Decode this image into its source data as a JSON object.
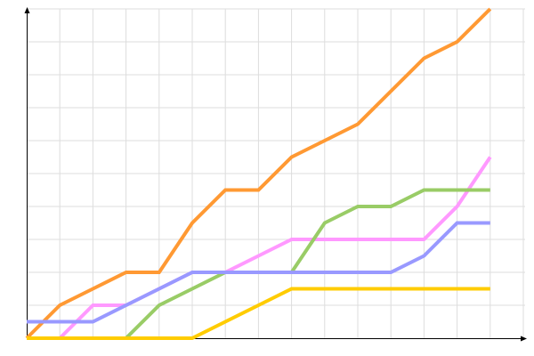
{
  "chart_data": {
    "type": "line",
    "title": "",
    "xlabel": "",
    "ylabel": "",
    "x": [
      0,
      1,
      2,
      3,
      4,
      5,
      6,
      7,
      8,
      9,
      10,
      11,
      12,
      13,
      14
    ],
    "xlim": [
      0,
      15
    ],
    "ylim": [
      0,
      10
    ],
    "grid": true,
    "legend": "none",
    "series": [
      {
        "color": "#ff9933",
        "values": [
          0,
          1,
          1.5,
          2,
          2,
          3.5,
          4.5,
          4.5,
          5.5,
          6,
          6.5,
          7.5,
          8.5,
          9,
          10
        ]
      },
      {
        "color": "#ff99ff",
        "values": [
          0,
          0,
          1,
          1,
          1.5,
          2,
          2,
          2.5,
          3,
          3,
          3,
          3,
          3,
          4,
          5.5
        ]
      },
      {
        "color": "#99cc66",
        "values": [
          0,
          0,
          0,
          0,
          1,
          1.5,
          2,
          2,
          2,
          3.5,
          4,
          4,
          4.5,
          4.5,
          4.5
        ]
      },
      {
        "color": "#9999ff",
        "values": [
          0.5,
          0.5,
          0.5,
          1,
          1.5,
          2,
          2,
          2,
          2,
          2,
          2,
          2,
          2.5,
          3.5,
          3.5
        ]
      },
      {
        "color": "#ffcc00",
        "values": [
          0,
          0,
          0,
          0,
          0,
          0,
          0.5,
          1,
          1.5,
          1.5,
          1.5,
          1.5,
          1.5,
          1.5,
          1.5
        ]
      }
    ]
  }
}
